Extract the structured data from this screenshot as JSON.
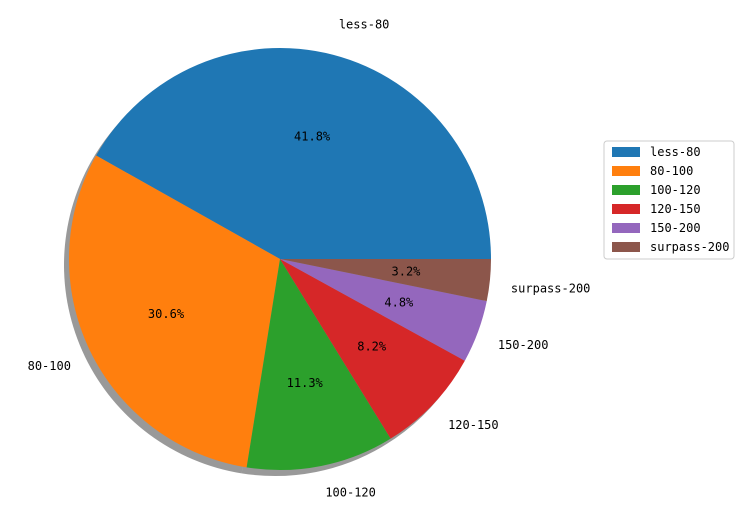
{
  "chart_data": {
    "type": "pie",
    "categories": [
      "less-80",
      "80-100",
      "100-120",
      "120-150",
      "150-200",
      "surpass-200"
    ],
    "values": [
      41.8,
      30.6,
      11.3,
      8.2,
      4.8,
      3.2
    ],
    "value_labels": [
      "41.8%",
      "30.6%",
      "11.3%",
      "8.2%",
      "4.8%",
      "3.2%"
    ],
    "colors": [
      "#1f77b4",
      "#ff7f0e",
      "#2ca02c",
      "#d62728",
      "#9467bd",
      "#8c564b"
    ],
    "shadow": true,
    "legend": "right"
  }
}
